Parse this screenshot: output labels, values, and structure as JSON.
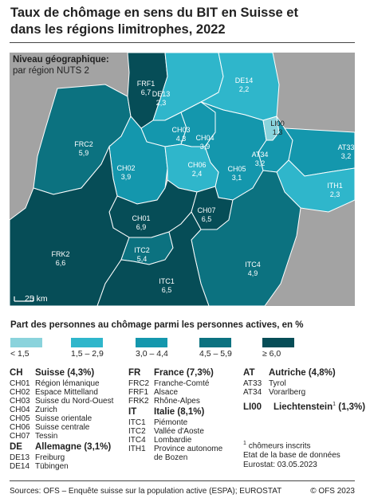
{
  "title_line1": "Taux de chômage en sens du BIT en Suisse et",
  "title_line2": "dans les régions limitrophes, 2022",
  "map": {
    "level_title": "Niveau géographique:",
    "level_sub": "par région NUTS 2",
    "scale_label": "25 km",
    "regions": [
      {
        "code": "FRF1",
        "value": "6,7",
        "klass": 5
      },
      {
        "code": "DE13",
        "value": "2,3",
        "klass": 2
      },
      {
        "code": "DE14",
        "value": "2,2",
        "klass": 2
      },
      {
        "code": "FRC2",
        "value": "5,9",
        "klass": 4
      },
      {
        "code": "CH03",
        "value": "4,3",
        "klass": 3
      },
      {
        "code": "CH04",
        "value": "3,9",
        "klass": 3
      },
      {
        "code": "LI00",
        "value": "1,3",
        "klass": 1
      },
      {
        "code": "AT34",
        "value": "3,2",
        "klass": 3
      },
      {
        "code": "AT33",
        "value": "3,2",
        "klass": 3
      },
      {
        "code": "CH02",
        "value": "3,9",
        "klass": 3
      },
      {
        "code": "CH06",
        "value": "2,4",
        "klass": 2
      },
      {
        "code": "CH05",
        "value": "3,1",
        "klass": 3
      },
      {
        "code": "ITH1",
        "value": "2,3",
        "klass": 2
      },
      {
        "code": "CH01",
        "value": "6,9",
        "klass": 5
      },
      {
        "code": "CH07",
        "value": "6,5",
        "klass": 5
      },
      {
        "code": "FRK2",
        "value": "6,6",
        "klass": 5
      },
      {
        "code": "ITC2",
        "value": "5,4",
        "klass": 4
      },
      {
        "code": "ITC4",
        "value": "4,9",
        "klass": 4
      },
      {
        "code": "ITC1",
        "value": "6,5",
        "klass": 5
      }
    ]
  },
  "legend": {
    "title": "Part des personnes au chômage parmi les personnes actives, en %",
    "classes": [
      {
        "label": "< 1,5",
        "color": "#8ad3dc"
      },
      {
        "label": "1,5 – 2,9",
        "color": "#2fb6cb"
      },
      {
        "label": "3,0 – 4,4",
        "color": "#1497ad"
      },
      {
        "label": "4,5 – 5,9",
        "color": "#0c7280"
      },
      {
        "label": "≥ 6,0",
        "color": "#064d57"
      }
    ]
  },
  "groups": {
    "ch": {
      "code": "CH",
      "name": "Suisse (4,3%)",
      "items": [
        {
          "code": "CH01",
          "name": "Région lémanique"
        },
        {
          "code": "CH02",
          "name": "Espace Mittelland"
        },
        {
          "code": "CH03",
          "name": "Suisse du Nord-Ouest"
        },
        {
          "code": "CH04",
          "name": "Zurich"
        },
        {
          "code": "CH05",
          "name": "Suisse orientale"
        },
        {
          "code": "CH06",
          "name": "Suisse centrale"
        },
        {
          "code": "CH07",
          "name": "Tessin"
        }
      ]
    },
    "de": {
      "code": "DE",
      "name": "Allemagne (3,1%)",
      "items": [
        {
          "code": "DE13",
          "name": "Freiburg"
        },
        {
          "code": "DE14",
          "name": "Tübingen"
        }
      ]
    },
    "fr": {
      "code": "FR",
      "name": "France (7,3%)",
      "items": [
        {
          "code": "FRC2",
          "name": "Franche-Comté"
        },
        {
          "code": "FRF1",
          "name": "Alsace"
        },
        {
          "code": "FRK2",
          "name": "Rhône-Alpes"
        }
      ]
    },
    "it": {
      "code": "IT",
      "name": "Italie (8,1%)",
      "items": [
        {
          "code": "ITC1",
          "name": "Piémonte"
        },
        {
          "code": "ITC2",
          "name": "Vallée d'Aoste"
        },
        {
          "code": "ITC4",
          "name": "Lombardie"
        },
        {
          "code": "ITH1",
          "name": "Province autonome"
        },
        {
          "code": "",
          "name": "de Bozen"
        }
      ]
    },
    "at": {
      "code": "AT",
      "name": "Autriche (4,8%)",
      "items": [
        {
          "code": "AT33",
          "name": "Tyrol"
        },
        {
          "code": "AT34",
          "name": "Vorarlberg"
        }
      ]
    },
    "li": {
      "code": "LI00",
      "name": "Liechtenstein",
      "sup": "1",
      "pct": " (1,3%)"
    }
  },
  "notes": {
    "footnote_mark": "1",
    "footnote_text": "chômeurs inscrits",
    "status_line1": "Etat de la base de données",
    "status_line2": "Eurostat: 03.05.2023"
  },
  "footer": {
    "sources": "Sources: OFS – Enquête suisse sur la population active (ESPA); EUROSTAT",
    "copyright": "© OFS 2023"
  }
}
